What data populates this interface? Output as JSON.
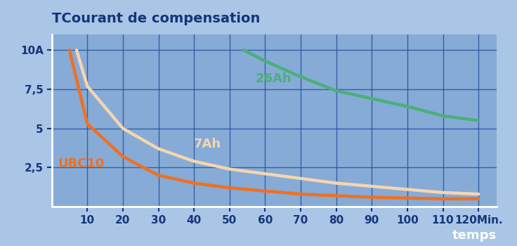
{
  "chart_data": {
    "type": "line",
    "title": "TCourant de compensation",
    "x_label": "temps",
    "xlim": [
      0,
      125
    ],
    "ylim": [
      0,
      11
    ],
    "xticks": [
      10,
      20,
      30,
      40,
      50,
      60,
      70,
      80,
      90,
      100,
      110,
      {
        "value": 120,
        "label": "120Min."
      }
    ],
    "yticks": [
      {
        "value": 2.5,
        "label": "2,5"
      },
      5,
      {
        "value": 7.5,
        "label": "7,5"
      },
      {
        "value": 10,
        "label": "10A"
      }
    ],
    "grid": true,
    "series": [
      {
        "name": "UBC10",
        "color": "#f07020",
        "x": [
          5,
          10,
          20,
          30,
          40,
          50,
          60,
          70,
          80,
          90,
          100,
          110,
          120
        ],
        "values": [
          10,
          5.3,
          3.2,
          2.0,
          1.5,
          1.2,
          1.0,
          0.8,
          0.7,
          0.6,
          0.55,
          0.5,
          0.5
        ]
      },
      {
        "name": "7Ah",
        "color": "#f5d5b0",
        "x": [
          7,
          10,
          20,
          30,
          40,
          50,
          60,
          70,
          80,
          90,
          100,
          110,
          120
        ],
        "values": [
          10,
          7.7,
          5.0,
          3.7,
          2.9,
          2.4,
          2.1,
          1.8,
          1.5,
          1.3,
          1.1,
          0.9,
          0.8
        ]
      },
      {
        "name": "26Ah",
        "color": "#4caf7a",
        "x": [
          54,
          60,
          70,
          80,
          90,
          100,
          110,
          120
        ],
        "values": [
          10,
          9.3,
          8.3,
          7.4,
          6.9,
          6.4,
          5.8,
          5.5
        ]
      }
    ]
  }
}
